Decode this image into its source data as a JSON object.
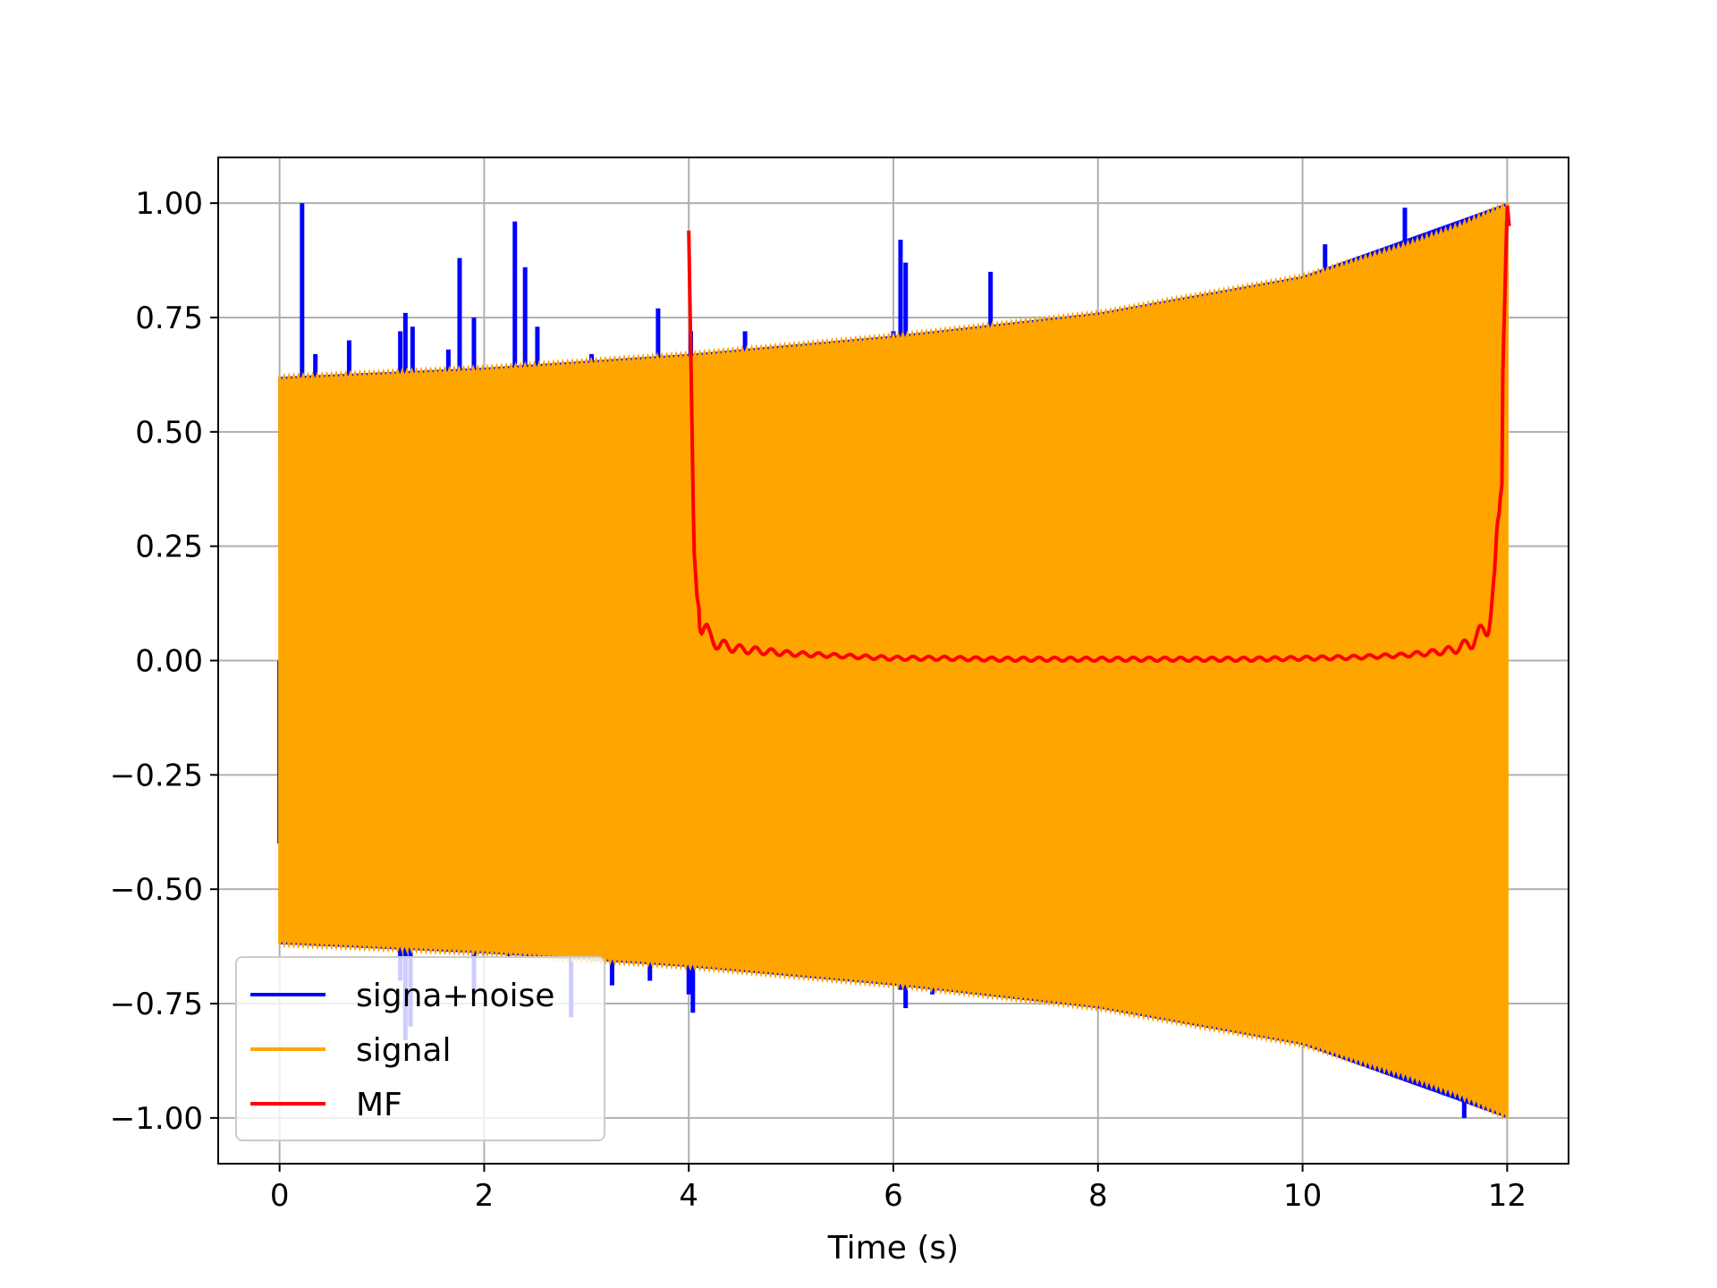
{
  "chart_data": {
    "type": "line",
    "title": "",
    "xlabel": "Time (s)",
    "ylabel": "",
    "xlim": [
      -0.6,
      12.6
    ],
    "ylim": [
      -1.1,
      1.1
    ],
    "xticks": [
      "0",
      "2",
      "4",
      "6",
      "8",
      "10",
      "12"
    ],
    "yticks": [
      "1.00",
      "0.75",
      "0.50",
      "0.25",
      "0.00",
      "−0.25",
      "−0.50",
      "−0.75",
      "−1.00"
    ],
    "grid": true,
    "legend_position": "lower-left",
    "series": [
      {
        "name": "signa+noise",
        "color": "#0000ff",
        "envelope_x": [
          0,
          2,
          4,
          6,
          8,
          10,
          12
        ],
        "envelope_upper": [
          0.62,
          0.64,
          0.67,
          0.71,
          0.76,
          0.84,
          1.0
        ],
        "spikes_x": [
          0.22,
          0.35,
          0.68,
          1.18,
          1.23,
          1.3,
          1.65,
          1.76,
          1.9,
          2.3,
          2.4,
          2.52,
          3.0,
          3.05,
          3.7,
          4.02,
          4.55,
          6.0,
          6.07,
          6.12,
          6.95,
          10.22,
          11.0
        ],
        "spikes_y": [
          1.0,
          0.67,
          0.7,
          0.72,
          0.76,
          0.73,
          0.68,
          0.88,
          0.75,
          0.96,
          0.86,
          0.73,
          0.65,
          0.67,
          0.77,
          0.72,
          0.72,
          0.72,
          0.92,
          0.87,
          0.85,
          0.91,
          0.99
        ],
        "neg_spikes_x": [
          0.0,
          1.18,
          1.23,
          1.28,
          1.9,
          2.25,
          2.85,
          3.25,
          3.62,
          4.0,
          4.04,
          6.0,
          6.07,
          6.12,
          6.38,
          11.58
        ],
        "neg_spikes_y": [
          -0.4,
          -0.7,
          -0.83,
          -0.8,
          -0.72,
          -0.65,
          -0.78,
          -0.71,
          -0.7,
          -0.73,
          -0.77,
          -0.71,
          -0.72,
          -0.76,
          -0.73,
          -1.0
        ]
      },
      {
        "name": "signal",
        "color": "#ffa500",
        "envelope_x": [
          0,
          2,
          4,
          6,
          8,
          10,
          11,
          11.5,
          12
        ],
        "envelope_upper": [
          0.62,
          0.64,
          0.67,
          0.71,
          0.76,
          0.84,
          0.91,
          0.95,
          1.0
        ]
      },
      {
        "name": "MF",
        "color": "#ff0000",
        "x": [
          4.0,
          4.02,
          4.05,
          4.08,
          4.12,
          4.16,
          4.2,
          4.3,
          4.5,
          5.0,
          5.5,
          6.0,
          6.5,
          7.0,
          7.5,
          8.0,
          8.5,
          9.0,
          9.5,
          10.0,
          10.5,
          11.0,
          11.3,
          11.5,
          11.65,
          11.75,
          11.82,
          11.88,
          11.92,
          11.96,
          12.0,
          12.02
        ],
        "y": [
          0.94,
          0.67,
          0.25,
          0.14,
          0.09,
          0.07,
          0.05,
          0.035,
          0.025,
          0.015,
          0.01,
          0.005,
          0.005,
          0.003,
          0.003,
          0.003,
          0.003,
          0.003,
          0.003,
          0.005,
          0.007,
          0.012,
          0.018,
          0.025,
          0.04,
          0.06,
          0.09,
          0.15,
          0.3,
          0.65,
          1.0,
          0.95
        ]
      }
    ]
  }
}
